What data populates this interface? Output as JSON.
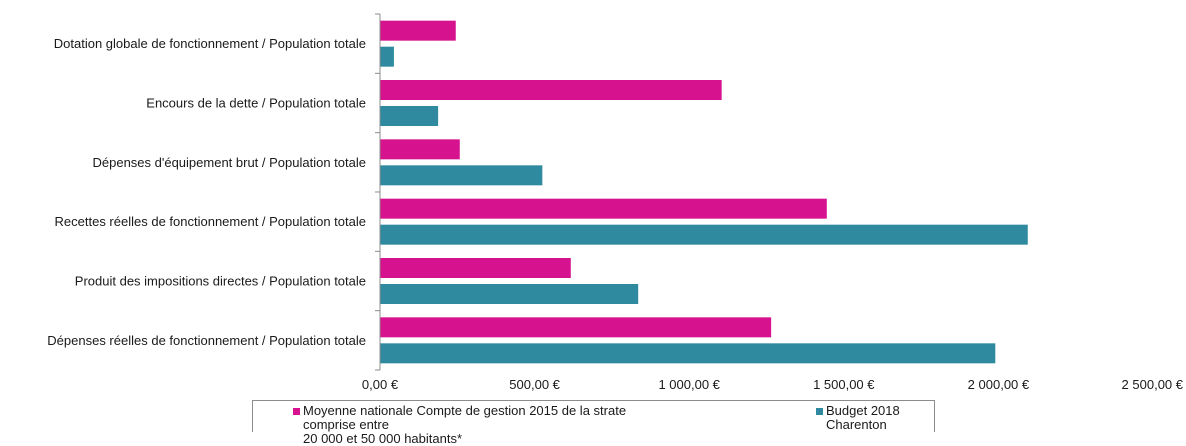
{
  "chart_data": {
    "type": "bar",
    "orientation": "horizontal",
    "categories": [
      "Dotation globale de fonctionnement / Population totale",
      "Encours de la dette / Population totale",
      "Dépenses d'équipement brut / Population totale",
      "Recettes réelles de fonctionnement / Population totale",
      "Produit des impositions directes / Population totale",
      "Dépenses réelles de fonctionnement / Population totale"
    ],
    "series": [
      {
        "name": "Moyenne nationale Compte de gestion 2015 de la strate comprise entre\n20 000 et 50 000 habitants*",
        "color": "#d6128e",
        "values": [
          245,
          1105,
          258,
          1445,
          617,
          1265
        ]
      },
      {
        "name": "Budget 2018\nCharenton",
        "color": "#2f8aa0",
        "values": [
          45,
          188,
          525,
          2095,
          835,
          1990
        ]
      }
    ],
    "x_ticks": [
      {
        "value": 0,
        "label": "0,00 €"
      },
      {
        "value": 500,
        "label": "500,00 €"
      },
      {
        "value": 1000,
        "label": "1 000,00 €"
      },
      {
        "value": 1500,
        "label": "1 500,00 €"
      },
      {
        "value": 2000,
        "label": "2 000,00 €"
      },
      {
        "value": 2500,
        "label": "2 500,00 €"
      }
    ],
    "xlim": [
      0,
      2500
    ],
    "grid": false,
    "legend_position": "bottom",
    "title": "",
    "xlabel": "",
    "ylabel": ""
  }
}
